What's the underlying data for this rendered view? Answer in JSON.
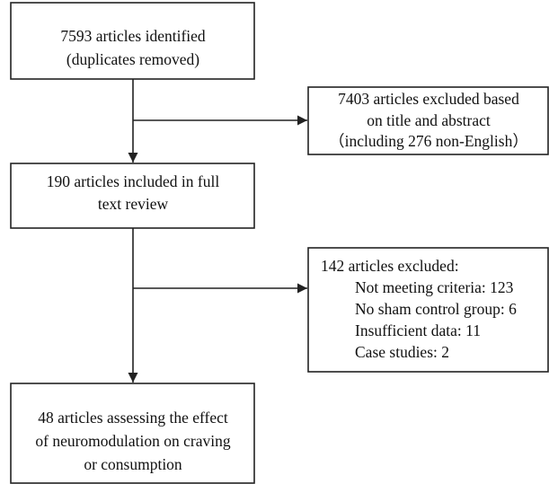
{
  "nodes": [
    {
      "lines": [
        "7593 articles identified",
        "(duplicates removed)"
      ]
    },
    {
      "lines": [
        "7403 articles excluded based",
        "on title and abstract",
        "（including 276 non-English）"
      ]
    },
    {
      "lines": [
        "190 articles included in full",
        "text review"
      ]
    },
    {
      "lines": [
        "142 articles excluded:",
        "Not meeting criteria: 123",
        "No sham control group: 6",
        "Insufficient data: 11",
        "Case studies: 2"
      ]
    },
    {
      "lines": [
        "48 articles assessing the effect",
        "of neuromodulation on craving",
        "or consumption"
      ]
    }
  ]
}
